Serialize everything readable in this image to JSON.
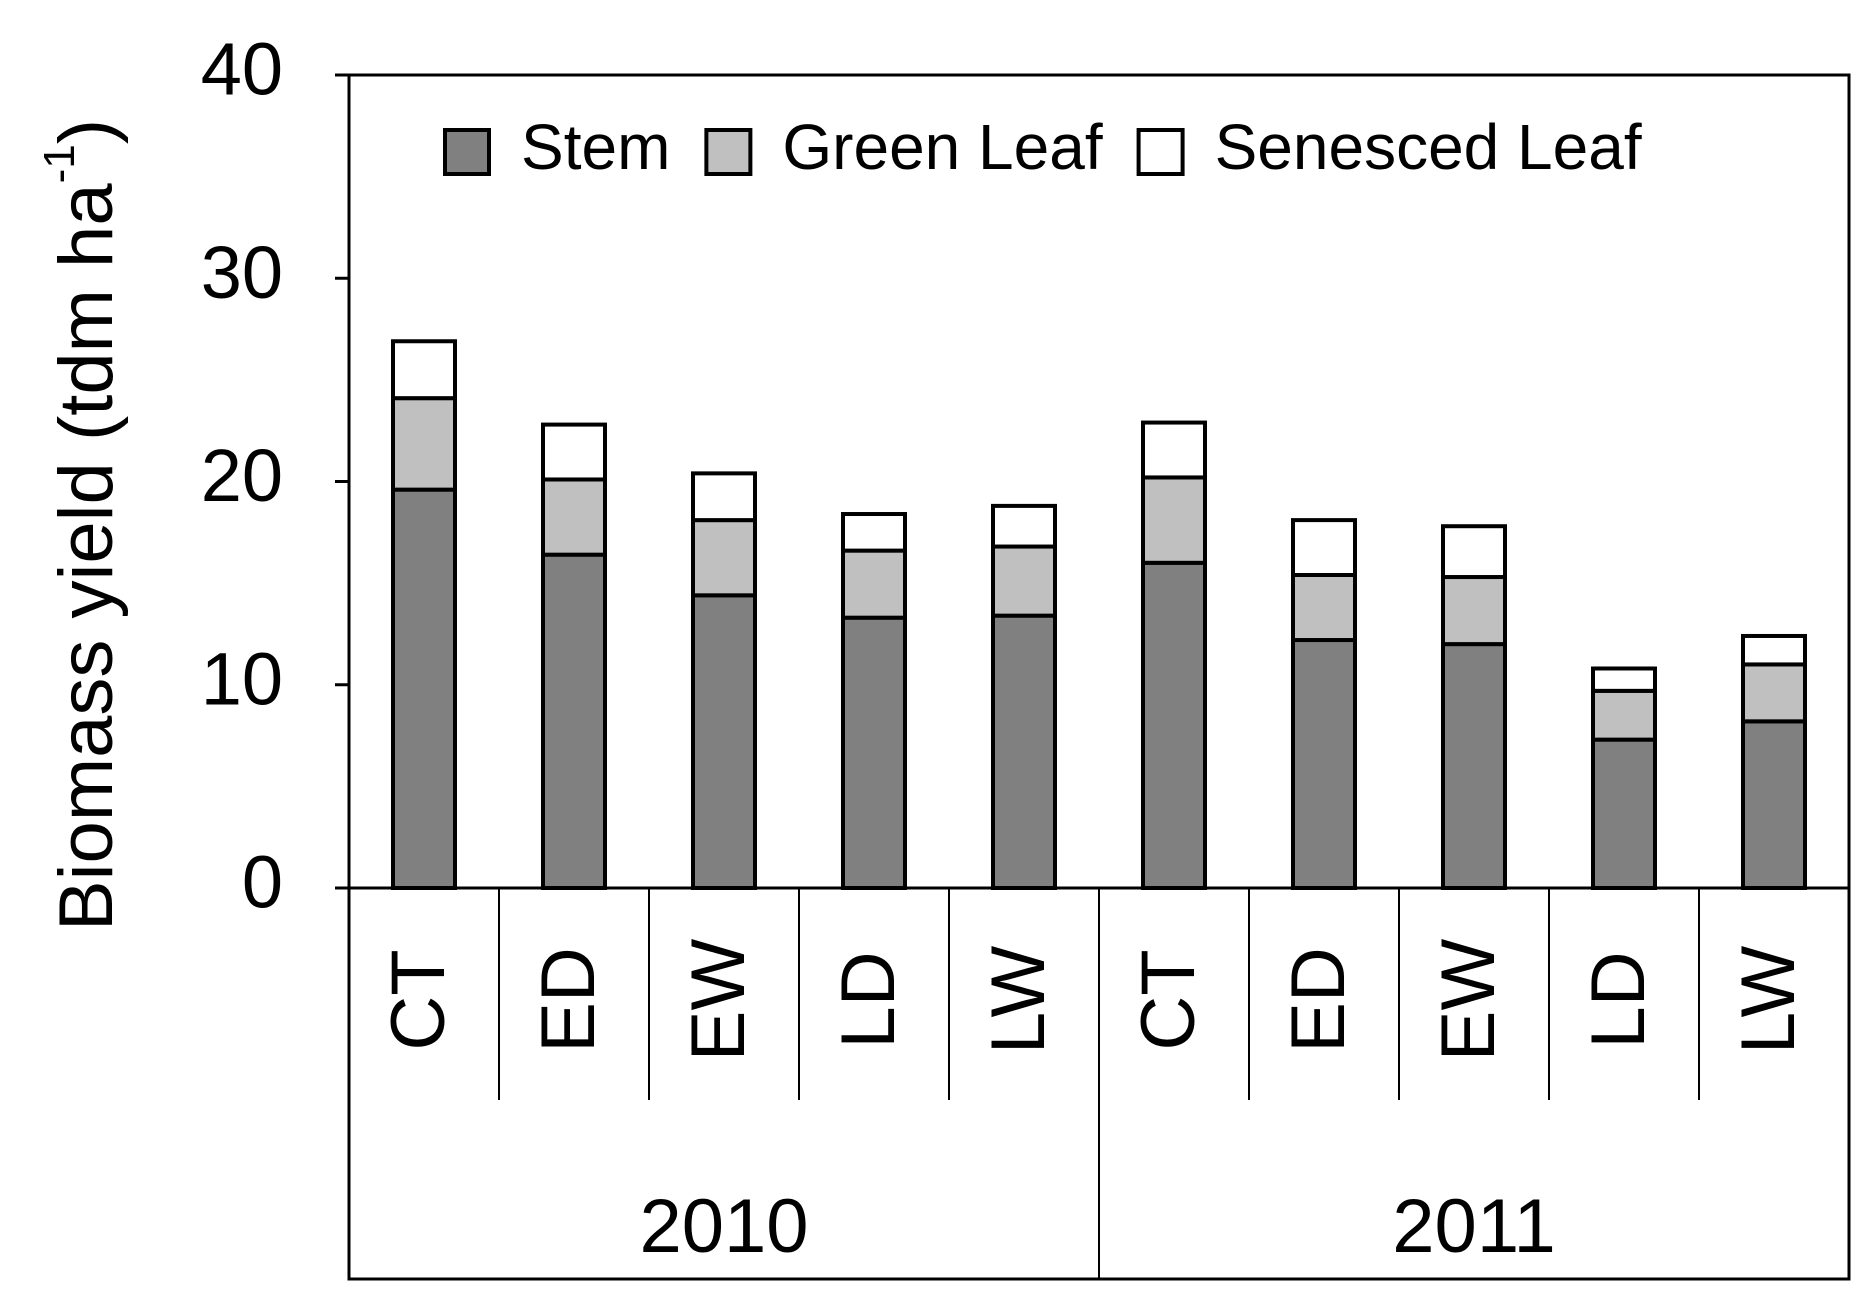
{
  "chart_data": {
    "type": "stacked-bar",
    "y_label_parts": [
      "Biomass yield (tdm ha",
      "-1",
      ")"
    ],
    "categories": [
      "CT",
      "ED",
      "EW",
      "LD",
      "LW",
      "CT",
      "ED",
      "EW",
      "LD",
      "LW"
    ],
    "groups": [
      "2010",
      "2011"
    ],
    "series": [
      {
        "name": "Stem",
        "color": "#808080",
        "values": [
          19.6,
          16.4,
          14.4,
          13.3,
          13.4,
          16.0,
          12.2,
          12.0,
          7.3,
          8.2
        ]
      },
      {
        "name": "Green Leaf",
        "color": "#c0c0c0",
        "values": [
          4.5,
          3.7,
          3.7,
          3.3,
          3.4,
          4.2,
          3.2,
          3.3,
          2.4,
          2.8
        ]
      },
      {
        "name": "Senesced Leaf",
        "color": "#ffffff",
        "values": [
          2.8,
          2.7,
          2.3,
          1.8,
          2.0,
          2.7,
          2.7,
          2.5,
          1.1,
          1.4
        ]
      }
    ],
    "ylim": [
      0,
      40
    ],
    "yticks": [
      0,
      10,
      20,
      30,
      40
    ],
    "legend": "top"
  }
}
